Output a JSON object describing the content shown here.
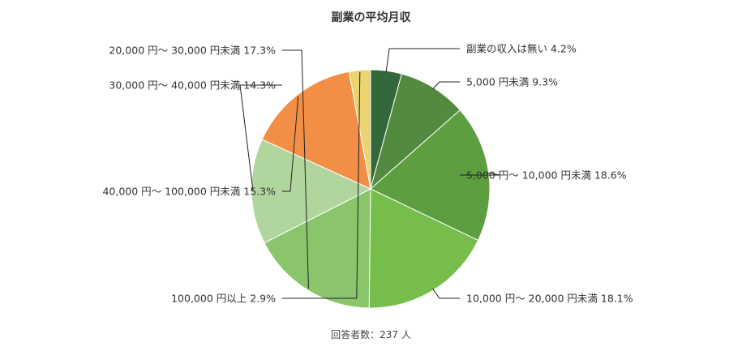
{
  "chart_data": {
    "type": "pie",
    "title": "副業の平均月収",
    "note": "回答者数：237 人",
    "start_angle_deg": 0,
    "direction": "clockwise",
    "slices": [
      {
        "label": "副業の収入は無い",
        "value": 4.2,
        "display": "副業の収入は無い 4.2%",
        "color": "#33693a",
        "side": "right"
      },
      {
        "label": "5,000 円未満",
        "value": 9.3,
        "display": "5,000 円未満 9.3%",
        "color": "#528a40",
        "side": "right"
      },
      {
        "label": "5,000 円〜 10,000 円未満",
        "value": 18.6,
        "display": "5,000 円〜 10,000 円未満 18.6%",
        "color": "#5c9e40",
        "side": "right"
      },
      {
        "label": "10,000 円〜 20,000 円未満",
        "value": 18.1,
        "display": "10,000 円〜 20,000 円未満 18.1%",
        "color": "#77bd4b",
        "side": "right"
      },
      {
        "label": "20,000 円〜 30,000 円未満",
        "value": 17.3,
        "display": "20,000 円〜 30,000 円未満 17.3%",
        "color": "#8ac56b",
        "side": "left"
      },
      {
        "label": "30,000 円〜 40,000 円未満",
        "value": 14.3,
        "display": "30,000 円〜 40,000 円未満 14.3%",
        "color": "#b1d69d",
        "side": "left"
      },
      {
        "label": "40,000 円〜 100,000 円未満",
        "value": 15.3,
        "display": "40,000 円〜 100,000 円未満 15.3%",
        "color": "#f28e45",
        "side": "left"
      },
      {
        "label": "100,000 円以上",
        "value": 2.9,
        "display": "100,000 円以上 2.9%",
        "color": "#ecd470",
        "side": "left"
      }
    ]
  }
}
